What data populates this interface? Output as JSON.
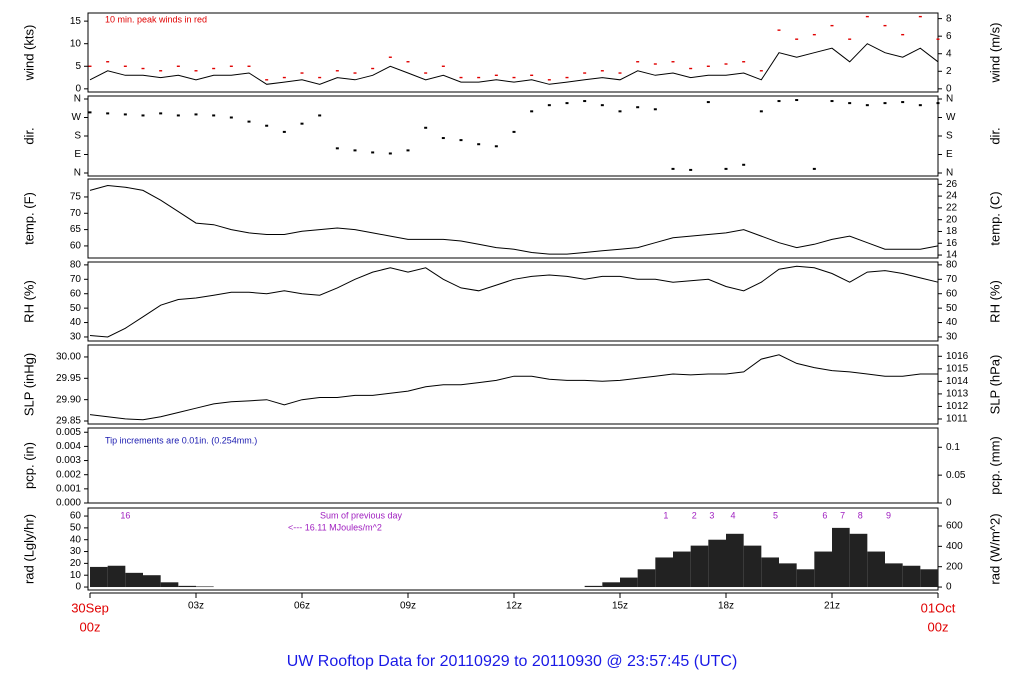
{
  "title": "UW Rooftop Data for 20110929  to  20110930 @ 23:57:45  (UTC)",
  "time_axis": {
    "xlim": [
      0,
      24
    ],
    "xticks": [
      {
        "value": 0,
        "label": "00z"
      },
      {
        "value": 3,
        "label": "03z"
      },
      {
        "value": 6,
        "label": "06z"
      },
      {
        "value": 9,
        "label": "09z"
      },
      {
        "value": 12,
        "label": "12z"
      },
      {
        "value": 15,
        "label": "15z"
      },
      {
        "value": 18,
        "label": "18z"
      },
      {
        "value": 21,
        "label": "21z"
      },
      {
        "value": 24,
        "label": "00z"
      }
    ],
    "start_date": "30Sep",
    "end_date": "01Oct"
  },
  "chart_data": [
    {
      "type": "line",
      "ylabel": "wind (kts)",
      "y2label": "wind (m/s)",
      "notes": [
        "10 min. peak winds in red"
      ],
      "note_color": "#e00000",
      "ylim": [
        -0.7,
        16.8
      ],
      "yticks": [
        0,
        5,
        10,
        15
      ],
      "y2lim": [
        -0.36,
        8.64
      ],
      "y2ticks": [
        0,
        2,
        4,
        6,
        8
      ],
      "x": [
        0,
        0.5,
        1,
        1.5,
        2,
        2.5,
        3,
        3.5,
        4,
        4.5,
        5,
        5.5,
        6,
        6.5,
        7,
        7.5,
        8,
        8.5,
        9,
        9.5,
        10,
        10.5,
        11,
        11.5,
        12,
        12.5,
        13,
        13.5,
        14,
        14.5,
        15,
        15.5,
        16,
        16.5,
        17,
        17.5,
        18,
        18.5,
        19,
        19.5,
        20,
        20.5,
        21,
        21.5,
        22,
        22.5,
        23,
        23.5,
        24
      ],
      "series": [
        {
          "color": "#000000",
          "mode": "line",
          "values": [
            2,
            4,
            3,
            3,
            2.5,
            3,
            2,
            3,
            3,
            3.5,
            1,
            1.5,
            2,
            1,
            2.5,
            2,
            3,
            5,
            3.5,
            2,
            3,
            1.5,
            1.5,
            2,
            1.5,
            2,
            1,
            1.5,
            2,
            2.5,
            2,
            4,
            3,
            3.5,
            2.5,
            3,
            3,
            3.5,
            2,
            8,
            7,
            8,
            9,
            6,
            10,
            8,
            7,
            9,
            6
          ]
        },
        {
          "color": "#e00000",
          "mode": "points",
          "values": [
            5,
            6,
            5,
            4.5,
            4,
            5,
            4,
            4.5,
            5,
            5,
            2,
            2.5,
            3.5,
            2.5,
            4,
            3.5,
            4.5,
            7,
            6,
            3.5,
            5,
            2.5,
            2.5,
            3,
            2.5,
            3,
            2,
            2.5,
            3.5,
            4,
            3.5,
            6,
            5.5,
            6,
            4.5,
            5,
            5.5,
            6,
            4,
            13,
            11,
            12,
            14,
            11,
            16,
            14,
            12,
            16,
            11
          ]
        }
      ]
    },
    {
      "type": "scatter",
      "ylabel": "dir.",
      "y2label": "dir.",
      "ylim": [
        -14.6,
        374.6
      ],
      "yticks": [
        {
          "value": 0,
          "label": "N"
        },
        {
          "value": 90,
          "label": "E"
        },
        {
          "value": 180,
          "label": "S"
        },
        {
          "value": 270,
          "label": "W"
        },
        {
          "value": 360,
          "label": "N"
        }
      ],
      "y2lim": [
        -14.6,
        374.6
      ],
      "y2ticks": [
        {
          "value": 0,
          "label": "N"
        },
        {
          "value": 90,
          "label": "E"
        },
        {
          "value": 180,
          "label": "S"
        },
        {
          "value": 270,
          "label": "W"
        },
        {
          "value": 360,
          "label": "N"
        }
      ],
      "x": [
        0,
        0.5,
        1,
        1.5,
        2,
        2.5,
        3,
        3.5,
        4,
        4.5,
        5,
        5.5,
        6,
        6.5,
        7,
        7.5,
        8,
        8.5,
        9,
        9.5,
        10,
        10.5,
        11,
        11.5,
        12,
        12.5,
        13,
        13.5,
        14,
        14.5,
        15,
        15.5,
        16,
        16.5,
        17,
        17.5,
        18,
        18.5,
        19,
        19.5,
        20,
        20.5,
        21,
        21.5,
        22,
        22.5,
        23,
        23.5,
        24
      ],
      "series": [
        {
          "color": "#000000",
          "values": [
            295,
            290,
            285,
            280,
            290,
            280,
            285,
            280,
            270,
            250,
            230,
            200,
            240,
            280,
            120,
            110,
            100,
            95,
            110,
            220,
            170,
            160,
            140,
            130,
            200,
            300,
            330,
            340,
            350,
            330,
            300,
            320,
            310,
            20,
            15,
            345,
            20,
            40,
            300,
            350,
            355,
            20,
            350,
            340,
            330,
            340,
            345,
            330,
            340
          ]
        }
      ]
    },
    {
      "type": "line",
      "ylabel": "temp. (F)",
      "y2label": "temp. (C)",
      "ylim": [
        56.3,
        80.5
      ],
      "yticks": [
        60,
        65,
        70,
        75
      ],
      "y2lim": [
        13.5,
        26.9
      ],
      "y2ticks": [
        14,
        16,
        18,
        20,
        22,
        24,
        26
      ],
      "x": [
        0,
        0.5,
        1,
        1.5,
        2,
        2.5,
        3,
        3.5,
        4,
        4.5,
        5,
        5.5,
        6,
        6.5,
        7,
        7.5,
        8,
        8.5,
        9,
        9.5,
        10,
        10.5,
        11,
        11.5,
        12,
        12.5,
        13,
        13.5,
        14,
        14.5,
        15,
        15.5,
        16,
        16.5,
        17,
        17.5,
        18,
        18.5,
        19,
        19.5,
        20,
        20.5,
        21,
        21.5,
        22,
        22.5,
        23,
        23.5,
        24
      ],
      "series": [
        {
          "color": "#000000",
          "mode": "line",
          "values": [
            77,
            78.5,
            78,
            77,
            74,
            70.5,
            67,
            66.5,
            65,
            64,
            63.5,
            63.5,
            64.5,
            65,
            65.5,
            65,
            64,
            63,
            62,
            62,
            62,
            61.5,
            60.5,
            59.5,
            59,
            58,
            57.5,
            57.5,
            58,
            58.5,
            59,
            59.5,
            61,
            62.5,
            63,
            63.5,
            64,
            65,
            63,
            61,
            59.5,
            60.5,
            62,
            63,
            61,
            59,
            59,
            59,
            60
          ]
        }
      ]
    },
    {
      "type": "line",
      "ylabel": "RH (%)",
      "y2label": "RH (%)",
      "ylim": [
        27.2,
        82
      ],
      "yticks": [
        30,
        40,
        50,
        60,
        70,
        80
      ],
      "y2lim": [
        27.2,
        82
      ],
      "y2ticks": [
        30,
        40,
        50,
        60,
        70,
        80
      ],
      "x": [
        0,
        0.5,
        1,
        1.5,
        2,
        2.5,
        3,
        3.5,
        4,
        4.5,
        5,
        5.5,
        6,
        6.5,
        7,
        7.5,
        8,
        8.5,
        9,
        9.5,
        10,
        10.5,
        11,
        11.5,
        12,
        12.5,
        13,
        13.5,
        14,
        14.5,
        15,
        15.5,
        16,
        16.5,
        17,
        17.5,
        18,
        18.5,
        19,
        19.5,
        20,
        20.5,
        21,
        21.5,
        22,
        22.5,
        23,
        23.5,
        24
      ],
      "series": [
        {
          "color": "#000000",
          "mode": "line",
          "values": [
            31,
            30,
            36,
            44,
            52,
            56,
            57,
            59,
            61,
            61,
            60,
            62,
            60,
            59,
            64,
            70,
            75,
            78,
            75,
            78,
            70,
            64,
            62,
            66,
            70,
            72,
            73,
            72,
            70,
            72,
            72,
            70,
            70,
            68,
            69,
            70,
            65,
            62,
            68,
            77,
            79,
            78,
            74,
            68,
            75,
            76,
            74,
            71,
            68
          ]
        }
      ]
    },
    {
      "type": "line",
      "ylabel": "SLP (inHg)",
      "y2label": "SLP (hPa)",
      "ylim": [
        29.843,
        30.028
      ],
      "yticks": [
        29.85,
        {
          "value": 29.9,
          "label": "29.90"
        },
        29.95,
        {
          "value": 30,
          "label": "30.00"
        }
      ],
      "y2lim": [
        1010.6,
        1016.9
      ],
      "y2ticks": [
        1011,
        1012,
        1013,
        1014,
        1015,
        1016
      ],
      "x": [
        0,
        0.5,
        1,
        1.5,
        2,
        2.5,
        3,
        3.5,
        4,
        4.5,
        5,
        5.5,
        6,
        6.5,
        7,
        7.5,
        8,
        8.5,
        9,
        9.5,
        10,
        10.5,
        11,
        11.5,
        12,
        12.5,
        13,
        13.5,
        14,
        14.5,
        15,
        15.5,
        16,
        16.5,
        17,
        17.5,
        18,
        18.5,
        19,
        19.5,
        20,
        20.5,
        21,
        21.5,
        22,
        22.5,
        23,
        23.5,
        24
      ],
      "series": [
        {
          "color": "#000000",
          "mode": "line",
          "values": [
            29.865,
            29.86,
            29.855,
            29.853,
            29.86,
            29.87,
            29.88,
            29.89,
            29.895,
            29.897,
            29.9,
            29.888,
            29.9,
            29.905,
            29.905,
            29.91,
            29.91,
            29.915,
            29.92,
            29.93,
            29.935,
            29.935,
            29.94,
            29.945,
            29.955,
            29.955,
            29.948,
            29.945,
            29.945,
            29.943,
            29.945,
            29.95,
            29.955,
            29.96,
            29.958,
            29.96,
            29.96,
            29.965,
            29.995,
            30.005,
            29.985,
            29.975,
            29.968,
            29.965,
            29.96,
            29.955,
            29.955,
            29.96,
            29.96
          ]
        }
      ]
    },
    {
      "type": "line",
      "ylabel": "pcp. (in)",
      "y2label": "pcp. (mm)",
      "notes": [
        "Tip increments are 0.01in. (0.254mm.)"
      ],
      "note_color": "#1a1ab0",
      "ylim": [
        0,
        0.0053
      ],
      "yticks": [
        {
          "value": 0,
          "label": "0.000"
        },
        0.001,
        0.002,
        0.003,
        0.004,
        0.005
      ],
      "y2lim": [
        0,
        0.1346
      ],
      "y2ticks": [
        0,
        0.05,
        0.1
      ],
      "series": []
    },
    {
      "type": "bar",
      "ylabel": "rad (Lgly/hr)",
      "y2label": "rad (W/m^2)",
      "notes": [
        "Sum of previous day",
        "<--- 16.11 MJoules/m^2"
      ],
      "note_color": "#a020c0",
      "markers": [
        {
          "text": "16",
          "x": 1
        },
        {
          "text": "1",
          "x": 16.3
        },
        {
          "text": "2",
          "x": 17.1
        },
        {
          "text": "3",
          "x": 17.6
        },
        {
          "text": "4",
          "x": 18.2
        },
        {
          "text": "5",
          "x": 19.4
        },
        {
          "text": "6",
          "x": 20.8
        },
        {
          "text": "7",
          "x": 21.3
        },
        {
          "text": "8",
          "x": 21.8
        },
        {
          "text": "9",
          "x": 22.6
        }
      ],
      "ylim": [
        -2.5,
        66.8
      ],
      "yticks": [
        0,
        10,
        20,
        30,
        40,
        50,
        60
      ],
      "y2lim": [
        -29,
        777
      ],
      "y2ticks": [
        0,
        200,
        400,
        600
      ],
      "x": [
        0,
        0.5,
        1,
        1.5,
        2,
        2.5,
        3,
        3.5,
        4,
        4.5,
        5,
        5.5,
        6,
        6.5,
        7,
        7.5,
        8,
        8.5,
        9,
        9.5,
        10,
        10.5,
        11,
        11.5,
        12,
        12.5,
        13,
        13.5,
        14,
        14.5,
        15,
        15.5,
        16,
        16.5,
        17,
        17.5,
        18,
        18.5,
        19,
        19.5,
        20,
        20.5,
        21,
        21.5,
        22,
        22.5,
        23,
        23.5,
        24
      ],
      "series": [
        {
          "color": "#222222",
          "values": [
            17,
            18,
            12,
            10,
            4,
            1,
            0.5,
            0,
            0,
            0,
            0,
            0,
            0,
            0,
            0,
            0,
            0,
            0,
            0,
            0,
            0,
            0,
            0,
            0,
            0,
            0,
            0,
            0,
            1,
            4,
            8,
            15,
            25,
            30,
            35,
            40,
            45,
            35,
            25,
            20,
            15,
            30,
            50,
            45,
            30,
            20,
            18,
            15,
            12
          ]
        }
      ]
    }
  ]
}
